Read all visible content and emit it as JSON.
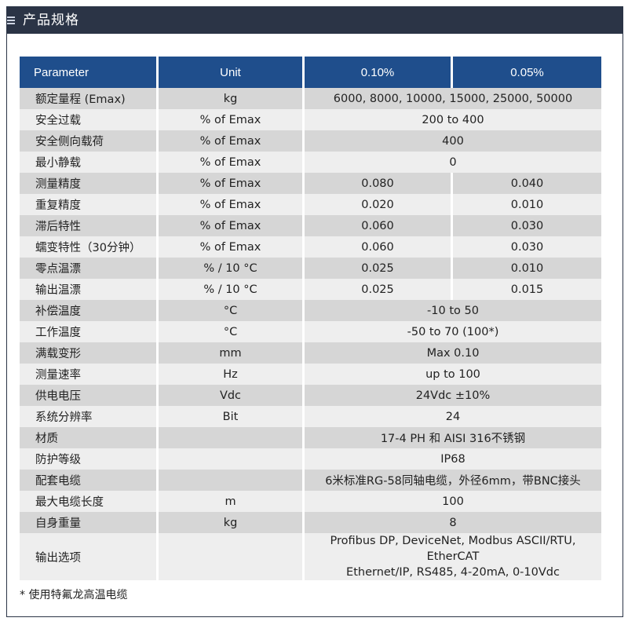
{
  "header": {
    "title": "产品规格",
    "icon": "list-icon"
  },
  "table": {
    "columns": [
      "Parameter",
      "Unit",
      "0.10%",
      "0.05%"
    ],
    "rows": [
      {
        "param": "额定量程 (Emax)",
        "unit": "kg",
        "value": "6000, 8000, 10000, 15000, 25000, 50000"
      },
      {
        "param": "安全过载",
        "unit": "% of Emax",
        "value": "200 to 400"
      },
      {
        "param": "安全侧向载荷",
        "unit": "% of Emax",
        "value": "400"
      },
      {
        "param": "最小静载",
        "unit": "% of Emax",
        "value": "0"
      },
      {
        "param": "测量精度",
        "unit": "% of Emax",
        "v1": "0.080",
        "v2": "0.040"
      },
      {
        "param": "重复精度",
        "unit": "% of Emax",
        "v1": "0.020",
        "v2": "0.010"
      },
      {
        "param": "滞后特性",
        "unit": "% of Emax",
        "v1": "0.060",
        "v2": "0.030"
      },
      {
        "param": "蠕变特性（30分钟）",
        "unit": "% of Emax",
        "v1": "0.060",
        "v2": "0.030"
      },
      {
        "param": "零点温漂",
        "unit": "% / 10 °C",
        "v1": "0.025",
        "v2": "0.010"
      },
      {
        "param": "输出温漂",
        "unit": "% / 10 °C",
        "v1": "0.025",
        "v2": "0.015"
      },
      {
        "param": "补偿温度",
        "unit": "°C",
        "value": "-10 to 50"
      },
      {
        "param": "工作温度",
        "unit": "°C",
        "value": "-50 to 70 (100*)"
      },
      {
        "param": "满载变形",
        "unit": "mm",
        "value": "Max 0.10"
      },
      {
        "param": "测量速率",
        "unit": "Hz",
        "value": "up to 100"
      },
      {
        "param": "供电电压",
        "unit": "Vdc",
        "value": "24Vdc ±10%"
      },
      {
        "param": "系统分辨率",
        "unit": "Bit",
        "value": "24"
      },
      {
        "param": "材质",
        "unit": "",
        "value": "17-4 PH 和 AISI 316不锈钢"
      },
      {
        "param": "防护等级",
        "unit": "",
        "value": "IP68"
      },
      {
        "param": "配套电缆",
        "unit": "",
        "value": "6米标准RG-58同轴电缆，外径6mm，带BNC接头"
      },
      {
        "param": "最大电缆长度",
        "unit": "m",
        "value": "100"
      },
      {
        "param": "自身重量",
        "unit": "kg",
        "value": "8"
      },
      {
        "param": "输出选项",
        "unit": "",
        "value_line1": "Profibus DP, DeviceNet, Modbus ASCII/RTU, EtherCAT",
        "value_line2": "Ethernet/IP, RS485, 4-20mA, 0-10Vdc"
      }
    ]
  },
  "footnote": "* 使用特氟龙高温电缆"
}
